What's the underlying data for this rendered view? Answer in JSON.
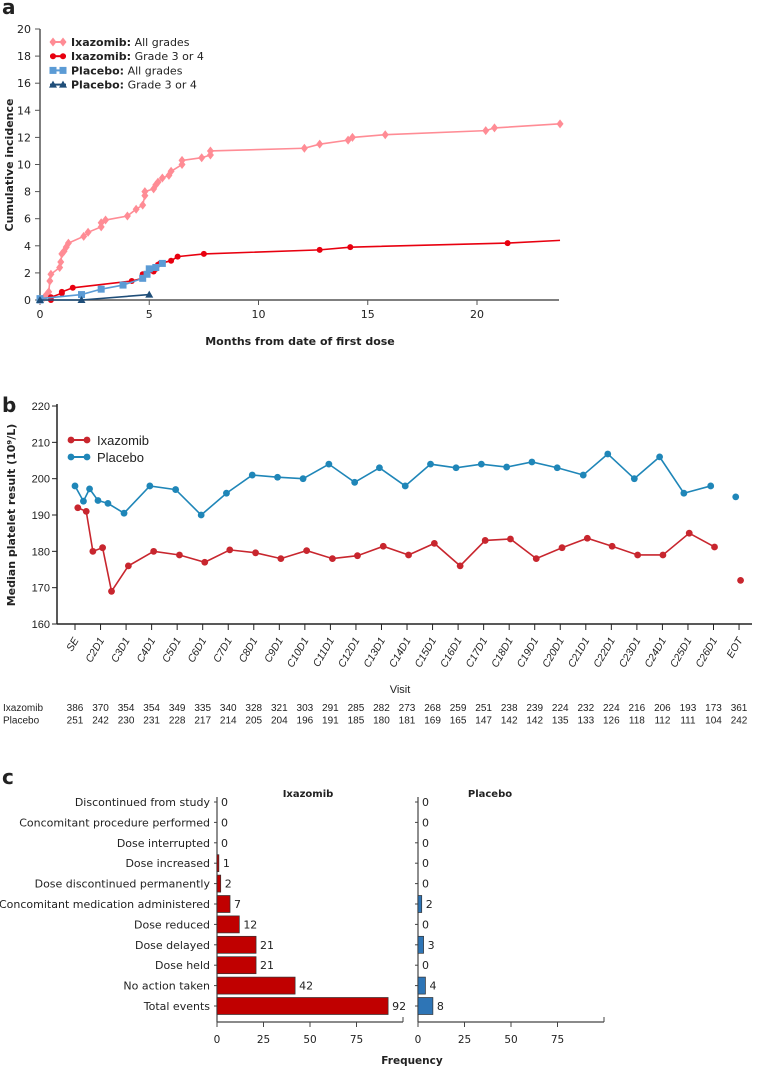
{
  "chart_data": [
    {
      "panel": "a",
      "type": "line",
      "title": "",
      "xlabel": "Months from date of first dose",
      "ylabel": "Cumulative incidence",
      "xlim": [
        0,
        24
      ],
      "ylim": [
        0,
        20
      ],
      "xticks": [
        "0",
        "5",
        "10",
        "15",
        "20"
      ],
      "yticks": [
        "0",
        "2",
        "4",
        "6",
        "8",
        "10",
        "12",
        "14",
        "16",
        "18",
        "20"
      ],
      "legend_position": "top-left",
      "series": [
        {
          "name_bold": "Ixazomib:",
          "name_rest": " All grades",
          "color": "#ff8c95",
          "marker": "diamond",
          "points": [
            [
              0,
              0
            ],
            [
              0.2,
              0.2
            ],
            [
              0.3,
              0.4
            ],
            [
              0.4,
              0.6
            ],
            [
              0.45,
              1.4
            ],
            [
              0.5,
              1.9
            ],
            [
              0.9,
              2.4
            ],
            [
              0.95,
              2.8
            ],
            [
              1.0,
              3.4
            ],
            [
              1.1,
              3.6
            ],
            [
              1.2,
              3.9
            ],
            [
              1.3,
              4.2
            ],
            [
              2.0,
              4.7
            ],
            [
              2.2,
              5.0
            ],
            [
              2.8,
              5.4
            ],
            [
              2.8,
              5.7
            ],
            [
              3.0,
              5.9
            ],
            [
              4.0,
              6.2
            ],
            [
              4.4,
              6.7
            ],
            [
              4.7,
              7.0
            ],
            [
              4.8,
              7.7
            ],
            [
              4.8,
              8.0
            ],
            [
              5.2,
              8.2
            ],
            [
              5.3,
              8.5
            ],
            [
              5.4,
              8.7
            ],
            [
              5.6,
              9.0
            ],
            [
              5.9,
              9.2
            ],
            [
              6.0,
              9.5
            ],
            [
              6.5,
              10.0
            ],
            [
              6.5,
              10.3
            ],
            [
              7.4,
              10.5
            ],
            [
              7.8,
              10.7
            ],
            [
              7.8,
              11.0
            ],
            [
              12.1,
              11.2
            ],
            [
              12.8,
              11.5
            ],
            [
              14.1,
              11.8
            ],
            [
              14.3,
              12.0
            ],
            [
              15.8,
              12.2
            ],
            [
              20.4,
              12.5
            ],
            [
              20.8,
              12.7
            ],
            [
              23.8,
              13.0
            ]
          ]
        },
        {
          "name_bold": "Ixazomib:",
          "name_rest": " Grade 3 or 4",
          "color": "#e8000f",
          "marker": "circle",
          "points": [
            [
              0.5,
              0
            ],
            [
              0.5,
              0.2
            ],
            [
              1.0,
              0.5
            ],
            [
              1.0,
              0.6
            ],
            [
              1.5,
              0.9
            ],
            [
              4.2,
              1.4
            ],
            [
              4.7,
              1.6
            ],
            [
              4.7,
              1.9
            ],
            [
              5.2,
              2.1
            ],
            [
              5.3,
              2.3
            ],
            [
              5.4,
              2.6
            ],
            [
              5.5,
              2.7
            ],
            [
              6.0,
              2.9
            ],
            [
              6.3,
              3.2
            ],
            [
              7.5,
              3.4
            ],
            [
              12.8,
              3.7
            ],
            [
              14.2,
              3.9
            ],
            [
              21.4,
              4.2
            ],
            [
              23.8,
              4.4
            ]
          ]
        },
        {
          "name_bold": "Placebo:",
          "name_rest": " All grades",
          "color": "#5b9bd5",
          "marker": "square",
          "points": [
            [
              0,
              0
            ],
            [
              0,
              0.1
            ],
            [
              1.9,
              0.4
            ],
            [
              2.8,
              0.8
            ],
            [
              3.8,
              1.1
            ],
            [
              4.7,
              1.6
            ],
            [
              4.9,
              1.9
            ],
            [
              5.0,
              2.3
            ],
            [
              5.3,
              2.4
            ],
            [
              5.6,
              2.7
            ]
          ]
        },
        {
          "name_bold": "Placebo:",
          "name_rest": " Grade 3 or 4",
          "color": "#1f4e79",
          "marker": "triangle",
          "points": [
            [
              0,
              0
            ],
            [
              1.9,
              0
            ],
            [
              5.0,
              0.4
            ]
          ]
        }
      ]
    },
    {
      "panel": "b",
      "type": "line",
      "xlabel": "Visit",
      "ylabel": "Median platelet result (10⁹/L)",
      "ylim": [
        160,
        220
      ],
      "yticks": [
        "160",
        "170",
        "180",
        "190",
        "200",
        "210",
        "220"
      ],
      "categories": [
        "SE",
        "C2D1",
        "C3D1",
        "C4D1",
        "C5D1",
        "C6D1",
        "C7D1",
        "C8D1",
        "C9D1",
        "C10D1",
        "C11D1",
        "C12D1",
        "C13D1",
        "C14D1",
        "C15D1",
        "C16D1",
        "C17D1",
        "C18D1",
        "C19D1",
        "C20D1",
        "C21D1",
        "C22D1",
        "C23D1",
        "C24D1",
        "C25D1",
        "C26D1",
        "EOT"
      ],
      "legend_position": "top-left",
      "series": [
        {
          "name": "Ixazomib",
          "color": "#c8262e",
          "points": [
            [
              0.11,
              192
            ],
            [
              0.44,
              191
            ],
            [
              0.7,
              180
            ],
            [
              1.08,
              181
            ],
            [
              1.43,
              169
            ],
            [
              2.09,
              176
            ],
            [
              3.08,
              180
            ],
            [
              4.09,
              179
            ],
            [
              5.08,
              177
            ],
            [
              6.06,
              180.4
            ],
            [
              7.07,
              179.6
            ],
            [
              8.06,
              178
            ],
            [
              9.07,
              180.2
            ],
            [
              10.08,
              178
            ],
            [
              11.06,
              178.8
            ],
            [
              12.07,
              181.4
            ],
            [
              13.06,
              179
            ],
            [
              14.07,
              182.2
            ],
            [
              15.08,
              176
            ],
            [
              16.06,
              183
            ],
            [
              17.05,
              183.4
            ],
            [
              18.06,
              178
            ],
            [
              19.07,
              181
            ],
            [
              20.06,
              183.6
            ],
            [
              21.03,
              181.4
            ],
            [
              22.03,
              179
            ],
            [
              23.02,
              179
            ],
            [
              24.05,
              185
            ],
            [
              25.04,
              181.2
            ]
          ],
          "eot_point": [
            26.06,
            172
          ]
        },
        {
          "name": "Placebo",
          "color": "#1f86b8",
          "points": [
            [
              0,
              198
            ],
            [
              0.33,
              193.8
            ],
            [
              0.57,
              197.2
            ],
            [
              0.9,
              194
            ],
            [
              1.29,
              193.2
            ],
            [
              1.92,
              190.5
            ],
            [
              2.93,
              198
            ],
            [
              3.94,
              197
            ],
            [
              4.94,
              190
            ],
            [
              5.93,
              196
            ],
            [
              6.94,
              201
            ],
            [
              7.93,
              200.4
            ],
            [
              8.93,
              200
            ],
            [
              9.94,
              204
            ],
            [
              10.95,
              199
            ],
            [
              11.92,
              203
            ],
            [
              12.93,
              198
            ],
            [
              13.92,
              204
            ],
            [
              14.92,
              203
            ],
            [
              15.91,
              204
            ],
            [
              16.9,
              203.2
            ],
            [
              17.89,
              204.6
            ],
            [
              18.88,
              203
            ],
            [
              19.9,
              201
            ],
            [
              20.86,
              206.8
            ],
            [
              21.9,
              200
            ],
            [
              22.89,
              206
            ],
            [
              23.84,
              196
            ],
            [
              24.89,
              198
            ]
          ],
          "eot_point": [
            25.87,
            195
          ]
        }
      ],
      "counts": [
        {
          "label": "Ixazomib",
          "values": [
            "386",
            "370",
            "354",
            "354",
            "349",
            "335",
            "340",
            "328",
            "321",
            "303",
            "291",
            "285",
            "282",
            "273",
            "268",
            "259",
            "251",
            "238",
            "239",
            "224",
            "232",
            "224",
            "216",
            "206",
            "193",
            "173",
            "361"
          ]
        },
        {
          "label": "Placebo",
          "values": [
            "251",
            "242",
            "230",
            "231",
            "228",
            "217",
            "214",
            "205",
            "204",
            "196",
            "191",
            "185",
            "180",
            "181",
            "169",
            "165",
            "147",
            "142",
            "142",
            "135",
            "133",
            "126",
            "118",
            "112",
            "111",
            "104",
            "242"
          ]
        }
      ]
    },
    {
      "panel": "c",
      "type": "bar",
      "orientation": "horizontal",
      "xlabel": "Frequency",
      "categories": [
        "Discontinued from study",
        "Concomitant procedure performed",
        "Dose interrupted",
        "Dose increased",
        "Dose discontinued permanently",
        "Concomitant medication administered",
        "Dose reduced",
        "Dose delayed",
        "Dose held",
        "No action taken",
        "Total events"
      ],
      "xticks": [
        "0",
        "25",
        "50",
        "75"
      ],
      "xlim": [
        0,
        100
      ],
      "series": [
        {
          "name": "Ixazomib",
          "color": "#c00000",
          "values": [
            0,
            0,
            0,
            1,
            2,
            7,
            12,
            21,
            21,
            42,
            92
          ]
        },
        {
          "name": "Placebo",
          "color": "#2e75b6",
          "values": [
            0,
            0,
            0,
            0,
            0,
            2,
            0,
            3,
            0,
            4,
            8
          ]
        }
      ]
    }
  ],
  "panel_labels": [
    "a",
    "b",
    "c"
  ]
}
